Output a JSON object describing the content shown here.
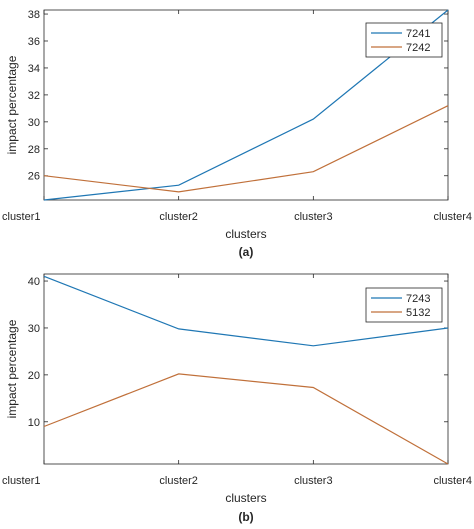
{
  "chart_data": [
    {
      "type": "line",
      "categories": [
        "cluster1",
        "cluster2",
        "cluster3",
        "cluster4"
      ],
      "series": [
        {
          "name": "7241",
          "values": [
            24.2,
            25.3,
            30.2,
            38.3
          ],
          "color": "#1f77b4"
        },
        {
          "name": "7242",
          "values": [
            26.0,
            24.8,
            26.3,
            31.2
          ],
          "color": "#c0703a"
        }
      ],
      "xlabel": "clusters",
      "ylabel": "impact percentage",
      "ylim": [
        24.2,
        38.3
      ],
      "yticks": [
        26,
        28,
        30,
        32,
        34,
        36,
        38
      ],
      "legend_position": "top-right",
      "grid": false,
      "caption": "(a)"
    },
    {
      "type": "line",
      "categories": [
        "cluster1",
        "cluster2",
        "cluster3",
        "cluster4"
      ],
      "series": [
        {
          "name": "7243",
          "values": [
            41.0,
            29.8,
            26.2,
            30.0
          ],
          "color": "#1f77b4"
        },
        {
          "name": "5132",
          "values": [
            9.0,
            20.2,
            17.3,
            1.0
          ],
          "color": "#c0703a"
        }
      ],
      "xlabel": "clusters",
      "ylabel": "impact percentage",
      "ylim": [
        1,
        41.5
      ],
      "yticks": [
        10,
        20,
        30,
        40
      ],
      "legend_position": "top-right",
      "grid": false,
      "caption": "(b)"
    }
  ]
}
